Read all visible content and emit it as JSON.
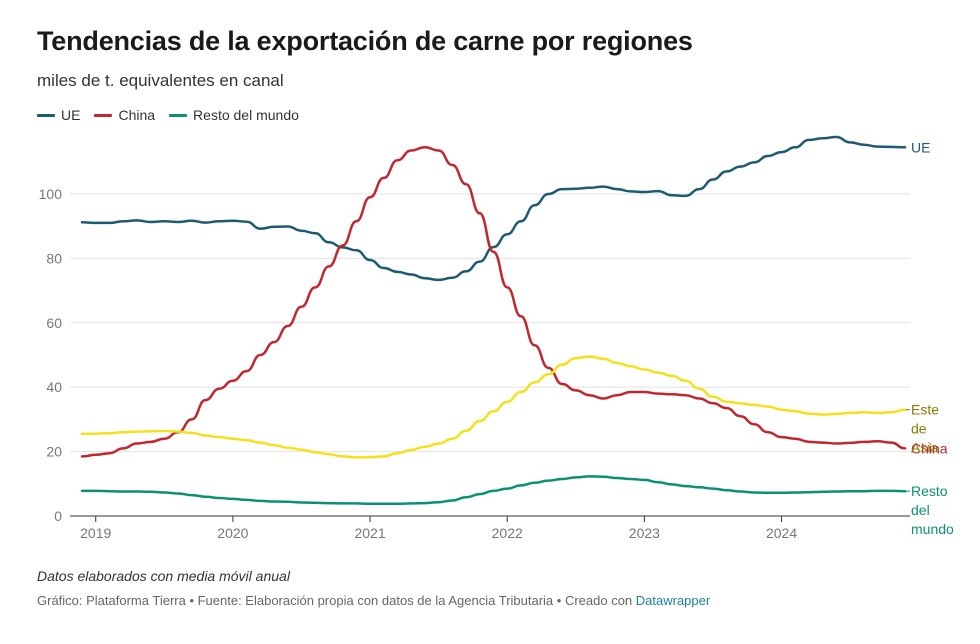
{
  "title": "Tendencias de la exportación de carne por regiones",
  "subtitle": "miles de t. equivalentes en canal",
  "note": "Datos elaborados con media móvil anual",
  "credit": {
    "text": "Gráfico: Plataforma Tierra • Fuente: Elaboración propia con datos de la Agencia Tributaria • Creado con ",
    "link": "Datawrapper"
  },
  "legend": [
    {
      "name": "UE",
      "color": "#1d5a74"
    },
    {
      "name": "China",
      "color": "#c1272d"
    },
    {
      "name": "Resto del mundo",
      "color": "#0a9171"
    }
  ],
  "chart_data": {
    "type": "line",
    "title": "Tendencias de la exportación de carne por regiones",
    "ylabel": "miles de t. equivalentes en canal",
    "xlim": [
      2018.9,
      2024.9
    ],
    "ylim": [
      0,
      118
    ],
    "yticks": [
      0,
      20,
      40,
      60,
      80,
      100
    ],
    "xticks": [
      2019,
      2020,
      2021,
      2022,
      2023,
      2024
    ],
    "grid": true,
    "series": [
      {
        "name": "UE",
        "label": "UE",
        "color": "#1d5a74",
        "x": [
          2018.9,
          2019.0,
          2019.1,
          2019.2,
          2019.3,
          2019.4,
          2019.5,
          2019.6,
          2019.7,
          2019.8,
          2019.9,
          2020.0,
          2020.1,
          2020.2,
          2020.3,
          2020.4,
          2020.5,
          2020.6,
          2020.7,
          2020.8,
          2020.9,
          2021.0,
          2021.1,
          2021.2,
          2021.3,
          2021.4,
          2021.5,
          2021.6,
          2021.7,
          2021.8,
          2021.9,
          2022.0,
          2022.1,
          2022.2,
          2022.3,
          2022.4,
          2022.5,
          2022.6,
          2022.7,
          2022.8,
          2022.9,
          2023.0,
          2023.1,
          2023.2,
          2023.3,
          2023.4,
          2023.5,
          2023.6,
          2023.7,
          2023.8,
          2023.9,
          2024.0,
          2024.1,
          2024.2,
          2024.3,
          2024.4,
          2024.5,
          2024.6,
          2024.7,
          2024.8,
          2024.9
        ],
        "values": [
          91.2,
          91.0,
          91.0,
          91.5,
          91.8,
          91.3,
          91.5,
          91.3,
          91.7,
          91.1,
          91.5,
          91.7,
          91.4,
          89.2,
          89.8,
          89.9,
          88.6,
          87.8,
          85.0,
          83.4,
          82.5,
          79.5,
          77.0,
          75.8,
          75.0,
          73.8,
          73.3,
          74.0,
          76.0,
          79.0,
          83.5,
          87.5,
          91.5,
          96.5,
          100.0,
          101.5,
          101.6,
          101.9,
          102.3,
          101.5,
          100.8,
          100.6,
          100.9,
          99.6,
          99.4,
          101.5,
          104.5,
          107.0,
          108.5,
          109.8,
          111.8,
          113.0,
          114.5,
          116.8,
          117.3,
          117.7,
          116.0,
          115.3,
          114.7,
          114.6,
          114.5
        ],
        "end_label": "UE"
      },
      {
        "name": "China",
        "label": "China",
        "color": "#c1272d",
        "x": [
          2018.9,
          2019.0,
          2019.1,
          2019.2,
          2019.3,
          2019.4,
          2019.5,
          2019.6,
          2019.7,
          2019.8,
          2019.9,
          2020.0,
          2020.1,
          2020.2,
          2020.3,
          2020.4,
          2020.5,
          2020.6,
          2020.7,
          2020.8,
          2020.9,
          2021.0,
          2021.1,
          2021.2,
          2021.3,
          2021.4,
          2021.5,
          2021.6,
          2021.7,
          2021.8,
          2021.9,
          2022.0,
          2022.1,
          2022.2,
          2022.3,
          2022.4,
          2022.5,
          2022.6,
          2022.7,
          2022.8,
          2022.9,
          2023.0,
          2023.1,
          2023.2,
          2023.3,
          2023.4,
          2023.5,
          2023.6,
          2023.7,
          2023.8,
          2023.9,
          2024.0,
          2024.1,
          2024.2,
          2024.3,
          2024.4,
          2024.5,
          2024.6,
          2024.7,
          2024.8,
          2024.9
        ],
        "values": [
          18.5,
          19.0,
          19.5,
          21.0,
          22.5,
          23.0,
          24.0,
          26.0,
          30.0,
          36.0,
          39.5,
          42.0,
          45.0,
          50.0,
          54.0,
          59.0,
          65.0,
          71.0,
          77.5,
          84.0,
          91.5,
          99.0,
          105.0,
          110.5,
          113.5,
          114.5,
          113.5,
          109.0,
          103.0,
          94.0,
          82.0,
          71.0,
          62.0,
          53.0,
          46.0,
          41.0,
          39.0,
          37.5,
          36.5,
          37.5,
          38.5,
          38.5,
          38.0,
          37.8,
          37.5,
          36.5,
          35.0,
          33.5,
          31.0,
          28.5,
          26.0,
          24.5,
          24.0,
          23.0,
          22.8,
          22.5,
          22.7,
          23.0,
          23.2,
          22.8,
          21.0
        ],
        "end_label": "China"
      },
      {
        "name": "Este de Asia",
        "label": "Este de Asia",
        "color": "#f5e11b",
        "x": [
          2018.9,
          2019.0,
          2019.1,
          2019.2,
          2019.3,
          2019.4,
          2019.5,
          2019.6,
          2019.7,
          2019.8,
          2019.9,
          2020.0,
          2020.1,
          2020.2,
          2020.3,
          2020.4,
          2020.5,
          2020.6,
          2020.7,
          2020.8,
          2020.9,
          2021.0,
          2021.1,
          2021.2,
          2021.3,
          2021.4,
          2021.5,
          2021.6,
          2021.7,
          2021.8,
          2021.9,
          2022.0,
          2022.1,
          2022.2,
          2022.3,
          2022.4,
          2022.5,
          2022.6,
          2022.7,
          2022.8,
          2022.9,
          2023.0,
          2023.1,
          2023.2,
          2023.3,
          2023.4,
          2023.5,
          2023.6,
          2023.7,
          2023.8,
          2023.9,
          2024.0,
          2024.1,
          2024.2,
          2024.3,
          2024.4,
          2024.5,
          2024.6,
          2024.7,
          2024.8,
          2024.9
        ],
        "values": [
          25.5,
          25.6,
          25.7,
          26.0,
          26.2,
          26.3,
          26.4,
          26.2,
          25.8,
          25.0,
          24.5,
          24.0,
          23.5,
          22.8,
          22.0,
          21.2,
          20.6,
          19.8,
          19.2,
          18.5,
          18.2,
          18.3,
          18.5,
          19.5,
          20.5,
          21.5,
          22.5,
          24.0,
          26.5,
          29.5,
          32.5,
          35.5,
          38.5,
          41.5,
          44.0,
          47.0,
          49.0,
          49.5,
          48.8,
          47.5,
          46.5,
          45.5,
          44.5,
          43.5,
          42.0,
          39.5,
          37.0,
          35.5,
          35.0,
          34.5,
          34.0,
          33.0,
          32.5,
          31.8,
          31.5,
          31.7,
          32.0,
          32.2,
          32.0,
          32.2,
          33.0
        ],
        "end_label": "Este de Asia"
      },
      {
        "name": "Resto del mundo",
        "label": "Resto del mundo",
        "color": "#0a9171",
        "x": [
          2018.9,
          2019.0,
          2019.1,
          2019.2,
          2019.3,
          2019.4,
          2019.5,
          2019.6,
          2019.7,
          2019.8,
          2019.9,
          2020.0,
          2020.1,
          2020.2,
          2020.3,
          2020.4,
          2020.5,
          2020.6,
          2020.7,
          2020.8,
          2020.9,
          2021.0,
          2021.1,
          2021.2,
          2021.3,
          2021.4,
          2021.5,
          2021.6,
          2021.7,
          2021.8,
          2021.9,
          2022.0,
          2022.1,
          2022.2,
          2022.3,
          2022.4,
          2022.5,
          2022.6,
          2022.7,
          2022.8,
          2022.9,
          2023.0,
          2023.1,
          2023.2,
          2023.3,
          2023.4,
          2023.5,
          2023.6,
          2023.7,
          2023.8,
          2023.9,
          2024.0,
          2024.1,
          2024.2,
          2024.3,
          2024.4,
          2024.5,
          2024.6,
          2024.7,
          2024.8,
          2024.9
        ],
        "values": [
          7.8,
          7.8,
          7.7,
          7.6,
          7.6,
          7.5,
          7.3,
          7.0,
          6.5,
          6.0,
          5.6,
          5.3,
          5.0,
          4.7,
          4.5,
          4.4,
          4.2,
          4.1,
          4.0,
          3.9,
          3.9,
          3.8,
          3.8,
          3.8,
          3.9,
          4.0,
          4.3,
          4.8,
          5.8,
          6.8,
          7.8,
          8.5,
          9.5,
          10.3,
          11.0,
          11.5,
          12.0,
          12.3,
          12.2,
          11.8,
          11.5,
          11.2,
          10.5,
          9.8,
          9.3,
          8.9,
          8.5,
          8.0,
          7.6,
          7.3,
          7.2,
          7.2,
          7.3,
          7.4,
          7.5,
          7.6,
          7.7,
          7.7,
          7.8,
          7.8,
          7.7
        ],
        "end_label": "Resto del mundo"
      }
    ]
  }
}
